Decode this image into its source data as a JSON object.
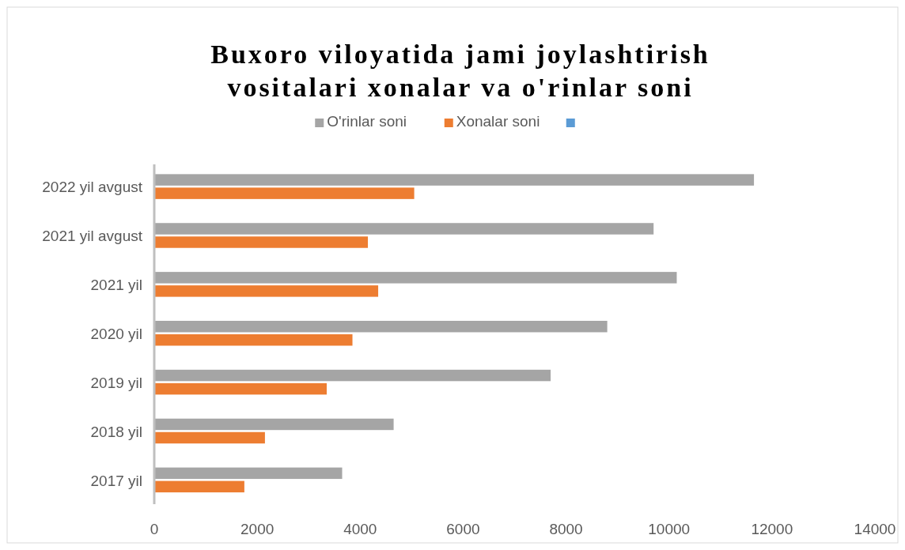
{
  "chart_data": {
    "type": "bar",
    "orientation": "horizontal",
    "title": "Buxoro viloyatida jami joylashtirish\nvositalari xonalar va o'rinlar soni",
    "categories": [
      "2022 yil avgust",
      "2021 yil avgust",
      "2021 yil",
      "2020 yil",
      "2019 yil",
      "2018 yil",
      "2017 yil"
    ],
    "series": [
      {
        "name": "O'rinlar soni",
        "color": "#a5a5a5",
        "values": [
          11650,
          9700,
          10150,
          8800,
          7700,
          4650,
          3650
        ]
      },
      {
        "name": "Xonalar soni",
        "color": "#ed7d31",
        "values": [
          5050,
          4150,
          4350,
          3850,
          3350,
          2150,
          1750
        ]
      },
      {
        "color": "#5b9bd5",
        "values": [
          null,
          null,
          null,
          null,
          null,
          null,
          null
        ]
      }
    ],
    "xlim": [
      0,
      14000
    ],
    "xticks": [
      0,
      2000,
      4000,
      6000,
      8000,
      10000,
      12000,
      14000
    ],
    "legend": "top",
    "grid": false
  }
}
